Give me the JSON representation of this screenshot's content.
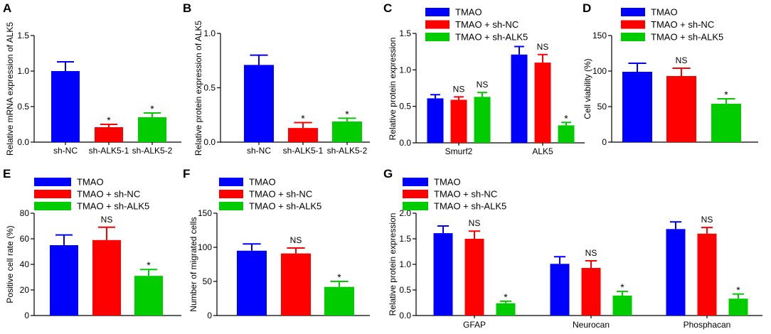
{
  "chart_data": [
    {
      "panel": "A",
      "type": "bar",
      "ylabel": "Relative mRNA expression of ALK5",
      "ylim": [
        0,
        1.5
      ],
      "yticks": [
        "0.0",
        "0.5",
        "1.0",
        "1.5"
      ],
      "categories": [
        "sh-NC",
        "sh-ALK5-1",
        "sh-ALK5-2"
      ],
      "values": [
        1.0,
        0.21,
        0.35
      ],
      "errors": [
        0.13,
        0.04,
        0.06
      ],
      "colors": [
        "#0000ff",
        "#ff0000",
        "#00cc00"
      ],
      "annotations": [
        null,
        "*",
        "*"
      ]
    },
    {
      "panel": "B",
      "type": "bar",
      "ylabel": "Relative protein expression of ALK5",
      "ylim": [
        0,
        1.0
      ],
      "yticks": [
        "0.0",
        "0.5",
        "1.0"
      ],
      "categories": [
        "sh-NC",
        "sh-ALK5-1",
        "sh-ALK5-2"
      ],
      "values": [
        0.71,
        0.13,
        0.19
      ],
      "errors": [
        0.09,
        0.05,
        0.03
      ],
      "colors": [
        "#0000ff",
        "#ff0000",
        "#00cc00"
      ],
      "annotations": [
        null,
        "*",
        "*"
      ]
    },
    {
      "panel": "C",
      "type": "bar",
      "ylabel": "Relative protein expression",
      "ylim": [
        0,
        1.5
      ],
      "yticks": [
        "0.0",
        "0.5",
        "1.0",
        "1.5"
      ],
      "categories": [
        "Smurf2",
        "ALK5"
      ],
      "legend_position": "top-left",
      "series": [
        {
          "name": "TMAO",
          "color": "#0000ff",
          "values": [
            0.61,
            1.21
          ],
          "errors": [
            0.05,
            0.11
          ],
          "annotations": [
            null,
            null
          ]
        },
        {
          "name": "TMAO + sh-NC",
          "color": "#ff0000",
          "values": [
            0.59,
            1.1
          ],
          "errors": [
            0.04,
            0.11
          ],
          "annotations": [
            "NS",
            "NS"
          ]
        },
        {
          "name": "TMAO + sh-ALK5",
          "color": "#00cc00",
          "values": [
            0.63,
            0.24
          ],
          "errors": [
            0.06,
            0.04
          ],
          "annotations": [
            "NS",
            "*"
          ]
        }
      ]
    },
    {
      "panel": "D",
      "type": "bar",
      "ylabel": "Cell viability (%)",
      "ylim": [
        0,
        150
      ],
      "yticks": [
        "0",
        "50",
        "100",
        "150"
      ],
      "legend_position": "top-left",
      "series": [
        {
          "name": "TMAO",
          "color": "#0000ff",
          "values": [
            99
          ],
          "errors": [
            12
          ],
          "annotations": [
            null
          ]
        },
        {
          "name": "TMAO + sh-NC",
          "color": "#ff0000",
          "values": [
            93
          ],
          "errors": [
            11
          ],
          "annotations": [
            "NS"
          ]
        },
        {
          "name": "TMAO + sh-ALK5",
          "color": "#00cc00",
          "values": [
            54
          ],
          "errors": [
            7
          ],
          "annotations": [
            "*"
          ]
        }
      ]
    },
    {
      "panel": "E",
      "type": "bar",
      "ylabel": "Positive cell rate (%)",
      "ylim": [
        0,
        80
      ],
      "yticks": [
        "0",
        "20",
        "40",
        "60",
        "80"
      ],
      "legend_position": "top-left",
      "series": [
        {
          "name": "TMAO",
          "color": "#0000ff",
          "values": [
            55
          ],
          "errors": [
            8
          ],
          "annotations": [
            null
          ]
        },
        {
          "name": "TMAO + sh-NC",
          "color": "#ff0000",
          "values": [
            59
          ],
          "errors": [
            10
          ],
          "annotations": [
            "NS"
          ]
        },
        {
          "name": "TMAO + sh-ALK5",
          "color": "#00cc00",
          "values": [
            31
          ],
          "errors": [
            5
          ],
          "annotations": [
            "*"
          ]
        }
      ]
    },
    {
      "panel": "F",
      "type": "bar",
      "ylabel": "Number of migrated cells",
      "ylim": [
        0,
        150
      ],
      "yticks": [
        "0",
        "50",
        "100",
        "150"
      ],
      "legend_position": "top-left",
      "series": [
        {
          "name": "TMAO",
          "color": "#0000ff",
          "values": [
            95
          ],
          "errors": [
            10
          ],
          "annotations": [
            null
          ]
        },
        {
          "name": "TMAO + sh-NC",
          "color": "#ff0000",
          "values": [
            91
          ],
          "errors": [
            8
          ],
          "annotations": [
            "NS"
          ]
        },
        {
          "name": "TMAO + sh-ALK5",
          "color": "#00cc00",
          "values": [
            42
          ],
          "errors": [
            8
          ],
          "annotations": [
            "*"
          ]
        }
      ]
    },
    {
      "panel": "G",
      "type": "bar",
      "ylabel": "Relative protein expression",
      "ylim": [
        0,
        2.0
      ],
      "yticks": [
        "0.0",
        "0.5",
        "1.0",
        "1.5",
        "2.0"
      ],
      "categories": [
        "GFAP",
        "Neurocan",
        "Phosphacan"
      ],
      "legend_position": "top-left",
      "series": [
        {
          "name": "TMAO",
          "color": "#0000ff",
          "values": [
            1.61,
            1.01,
            1.69
          ],
          "errors": [
            0.14,
            0.14,
            0.14
          ],
          "annotations": [
            null,
            null,
            null
          ]
        },
        {
          "name": "TMAO + sh-NC",
          "color": "#ff0000",
          "values": [
            1.5,
            0.93,
            1.6
          ],
          "errors": [
            0.15,
            0.14,
            0.12
          ],
          "annotations": [
            "NS",
            "NS",
            "NS"
          ]
        },
        {
          "name": "TMAO + sh-ALK5",
          "color": "#00cc00",
          "values": [
            0.24,
            0.39,
            0.33
          ],
          "errors": [
            0.04,
            0.08,
            0.09
          ],
          "annotations": [
            "*",
            "*",
            "*"
          ]
        }
      ]
    }
  ]
}
